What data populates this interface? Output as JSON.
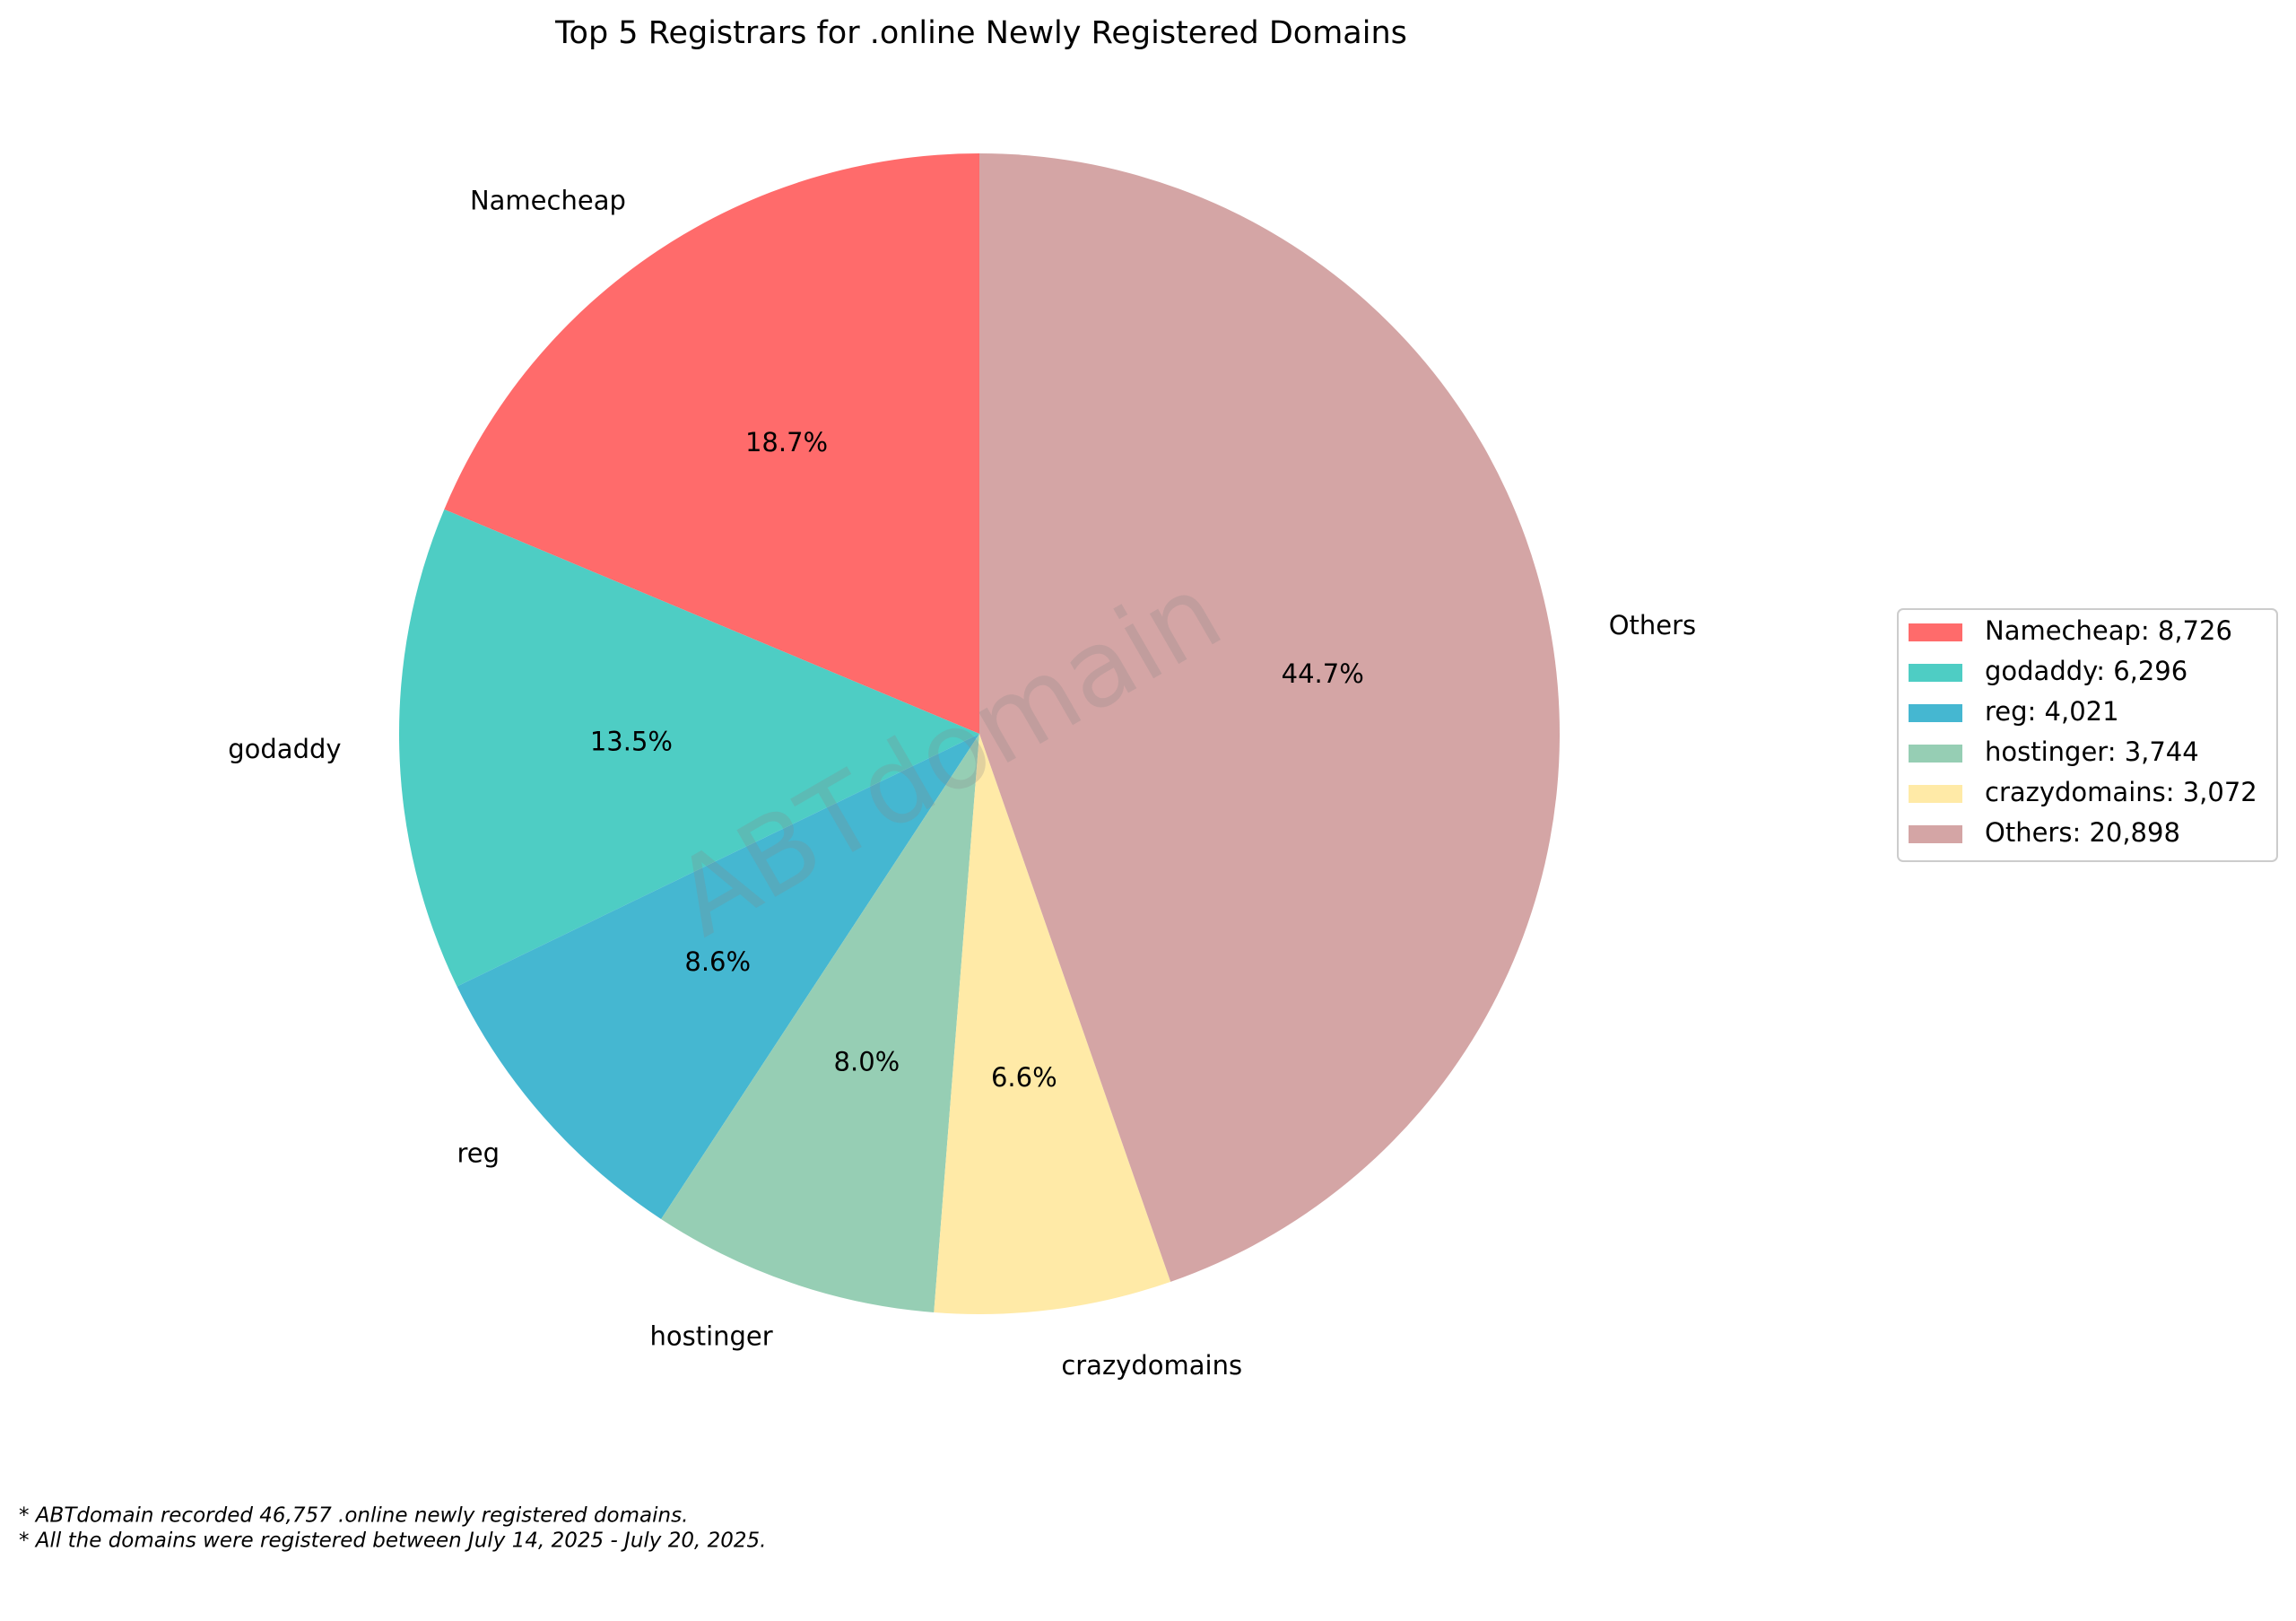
{
  "chart_data": {
    "type": "pie",
    "title": "Top 5 Registrars for .online Newly Registered Domains",
    "categories": [
      "Namecheap",
      "godaddy",
      "reg",
      "hostinger",
      "crazydomains",
      "Others"
    ],
    "values": [
      18.7,
      13.5,
      8.6,
      8.0,
      6.6,
      44.7
    ],
    "value_labels": [
      "18.7%",
      "13.5%",
      "8.6%",
      "8.0%",
      "6.6%",
      "44.7%"
    ],
    "colors": [
      "#FF6B6B",
      "#4ECDC4",
      "#45B7D1",
      "#96CEB4",
      "#FFEAA7",
      "#D4A5A5"
    ],
    "legend": [
      "Namecheap: 8,726",
      "godaddy: 6,296",
      "reg: 4,021",
      "hostinger: 3,744",
      "crazydomains: 3,072",
      "Others: 20,898"
    ],
    "legend_position": "right",
    "watermark": "ABTdomain",
    "notes": [
      "* ABTdomain recorded 46,757 .online newly registered domains.",
      "* All the domains were registered between July 14, 2025 - July 20, 2025."
    ]
  }
}
